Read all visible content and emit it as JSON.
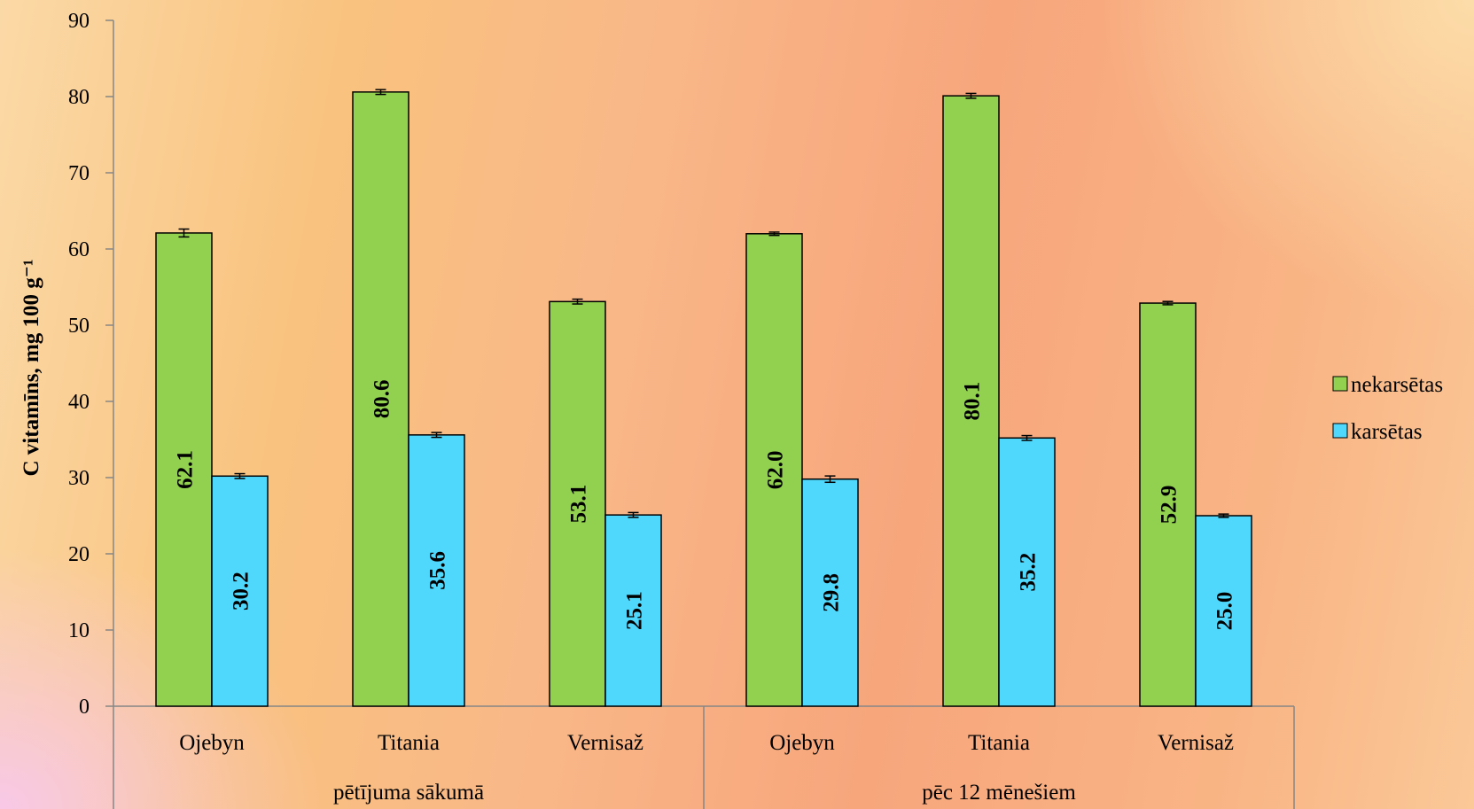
{
  "chart_data": {
    "type": "bar",
    "ylabel": "C vitamīns, mg 100 g⁻¹",
    "ylim": [
      0,
      90
    ],
    "yticks": [
      0,
      10,
      20,
      30,
      40,
      50,
      60,
      70,
      80,
      90
    ],
    "categories": [
      "Ojebyn",
      "Titania",
      "Vernisaž",
      "Ojebyn",
      "Titania",
      "Vernisaž"
    ],
    "groups": [
      {
        "label": "pētījuma sākumā",
        "categories": [
          "Ojebyn",
          "Titania",
          "Vernisaž"
        ]
      },
      {
        "label": "pēc 12 mēnešiem",
        "categories": [
          "Ojebyn",
          "Titania",
          "Vernisaž"
        ]
      }
    ],
    "series": [
      {
        "name": "nekarsētas",
        "color": "#92d050",
        "values": [
          62.1,
          80.6,
          53.1,
          62.0,
          80.1,
          52.9
        ],
        "labels": [
          "62.1",
          "80.6",
          "53.1",
          "62.0",
          "80.1",
          "52.9"
        ],
        "errors": [
          0.4,
          0.2,
          0.2,
          0.1,
          0.2,
          0.1
        ]
      },
      {
        "name": "karsētas",
        "color": "#4fd8fc",
        "values": [
          30.2,
          35.6,
          25.1,
          29.8,
          35.2,
          25.0
        ],
        "labels": [
          "30.2",
          "35.6",
          "25.1",
          "29.8",
          "35.2",
          "25.0"
        ],
        "errors": [
          0.2,
          0.2,
          0.2,
          0.3,
          0.2,
          0.1
        ]
      }
    ],
    "legend_position": "right",
    "grid": false
  }
}
